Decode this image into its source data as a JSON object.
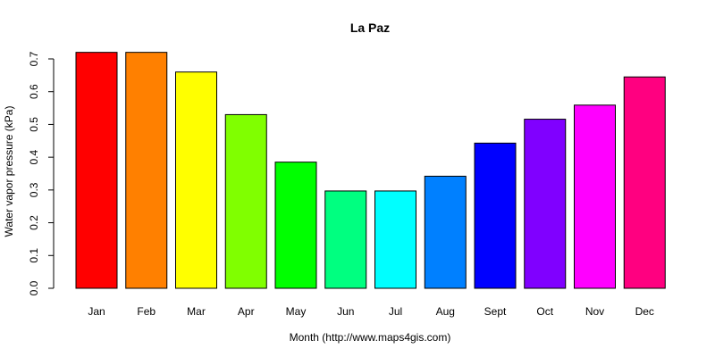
{
  "chart_data": {
    "type": "bar",
    "title": "La Paz",
    "xlabel": "Month (http://www.maps4gis.com)",
    "ylabel": "Water vapor pressure (kPa)",
    "categories": [
      "Jan",
      "Feb",
      "Mar",
      "Apr",
      "May",
      "Jun",
      "Jul",
      "Aug",
      "Sept",
      "Oct",
      "Nov",
      "Dec"
    ],
    "values": [
      0.72,
      0.72,
      0.66,
      0.53,
      0.385,
      0.297,
      0.297,
      0.342,
      0.443,
      0.516,
      0.559,
      0.645
    ],
    "colors": [
      "#FF0000",
      "#FF8000",
      "#FFFF00",
      "#80FF00",
      "#00FF00",
      "#00FF80",
      "#00FFFF",
      "#0080FF",
      "#0000FF",
      "#8000FF",
      "#FF00FF",
      "#FF0080"
    ],
    "yticks": [
      "0.0",
      "0.1",
      "0.2",
      "0.3",
      "0.4",
      "0.5",
      "0.6",
      "0.7"
    ],
    "ylim": [
      0,
      0.7
    ],
    "grid": false,
    "legend": "none"
  }
}
